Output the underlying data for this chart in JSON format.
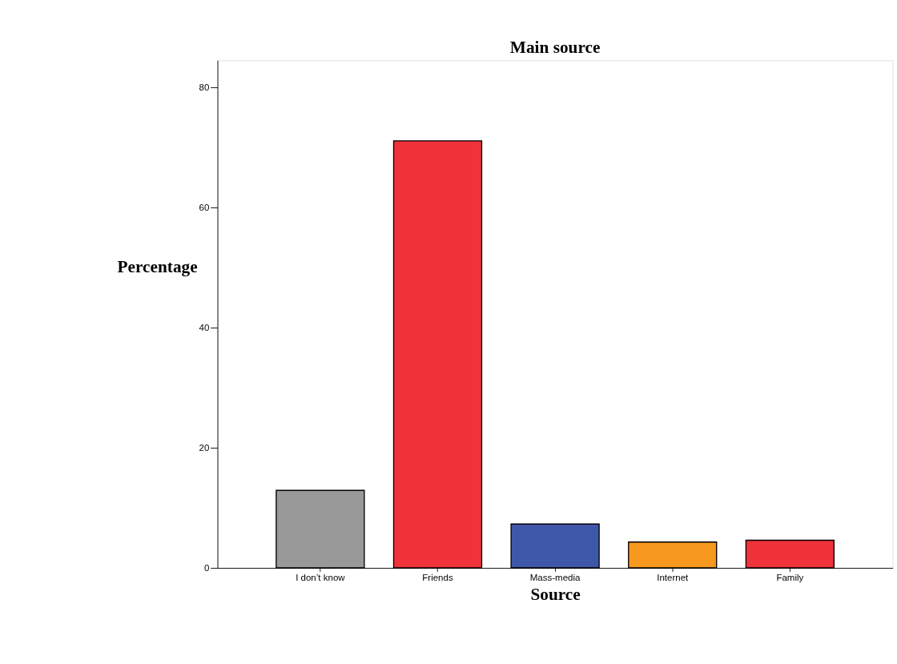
{
  "chart_data": {
    "type": "bar",
    "title": "Main source",
    "xlabel": "Source",
    "ylabel": "Percentage",
    "categories": [
      "I don’t know",
      "Friends",
      "Mass-media",
      "Internet",
      "Family"
    ],
    "values": [
      12.9,
      71.1,
      7.3,
      4.3,
      4.6
    ],
    "colors": [
      "#999999",
      "#f0323a",
      "#3f57a8",
      "#f7981f",
      "#f0323a"
    ],
    "ylim": [
      0,
      84.5
    ],
    "yticks": [
      0,
      20,
      40,
      60,
      80
    ],
    "grid": false,
    "legend": false
  }
}
